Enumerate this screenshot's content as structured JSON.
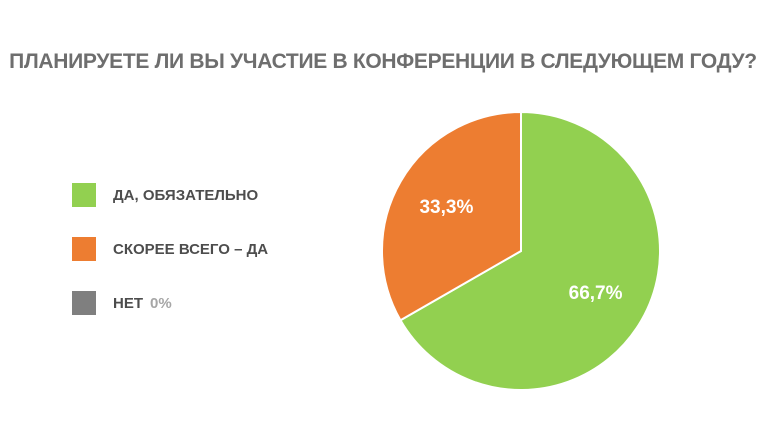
{
  "chart_data": {
    "type": "pie",
    "title": "ПЛАНИРУЕТЕ ЛИ ВЫ УЧАСТИЕ В КОНФЕРЕНЦИИ В СЛЕДУЮЩЕМ ГОДУ?",
    "legend_position": "left",
    "slices": [
      {
        "name": "ДА, ОБЯЗАТЕЛЬНО",
        "value": 66.7,
        "label": "66,7%",
        "color": "#92d050"
      },
      {
        "name": "СКОРЕЕ ВСЕГО – ДА",
        "value": 33.3,
        "label": "33,3%",
        "color": "#ed7d31"
      },
      {
        "name": "НЕТ",
        "value": 0,
        "label": "0%",
        "color": "#7f7f7f"
      }
    ]
  }
}
